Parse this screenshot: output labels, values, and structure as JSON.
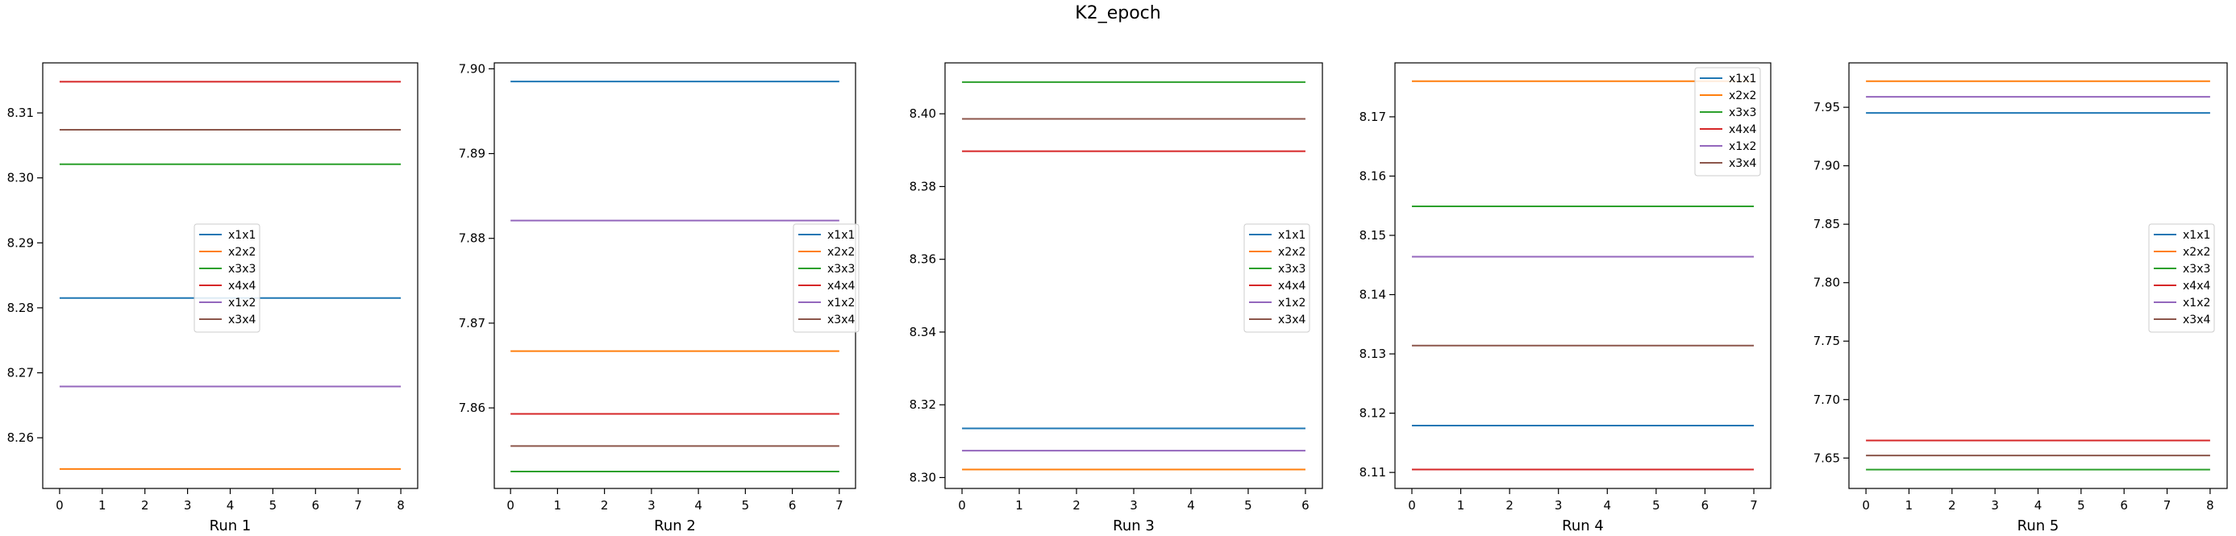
{
  "figure_title": "K2_epoch",
  "colors": {
    "x1x1": "#1f77b4",
    "x2x2": "#ff7f0e",
    "x3x3": "#2ca02c",
    "x4x4": "#d62728",
    "x1x2": "#9467bd",
    "x3x4": "#8c564b"
  },
  "chart_data": [
    {
      "type": "line",
      "xlabel": "Run 1",
      "ylabel": "",
      "grid": false,
      "legend_position": "center",
      "x": [
        0,
        1,
        2,
        3,
        4,
        5,
        6,
        7,
        8
      ],
      "xticks": [
        0,
        1,
        2,
        3,
        4,
        5,
        6,
        7,
        8
      ],
      "ylim": [
        8.2522,
        8.3177
      ],
      "yticks": [
        8.26,
        8.27,
        8.28,
        8.29,
        8.3,
        8.31
      ],
      "ytick_labels": [
        "8.26",
        "8.27",
        "8.28",
        "8.29",
        "8.30",
        "8.31"
      ],
      "series": [
        {
          "name": "x1x1",
          "value": 8.2815
        },
        {
          "name": "x2x2",
          "value": 8.2552
        },
        {
          "name": "x3x3",
          "value": 8.3021
        },
        {
          "name": "x4x4",
          "value": 8.3148
        },
        {
          "name": "x1x2",
          "value": 8.2679
        },
        {
          "name": "x3x4",
          "value": 8.3074
        }
      ]
    },
    {
      "type": "line",
      "xlabel": "Run 2",
      "ylabel": "",
      "grid": false,
      "legend_position": "right",
      "x": [
        0,
        1,
        2,
        3,
        4,
        5,
        6,
        7
      ],
      "xticks": [
        0,
        1,
        2,
        3,
        4,
        5,
        6,
        7
      ],
      "ylim": [
        7.8505,
        7.9007
      ],
      "yticks": [
        7.86,
        7.87,
        7.88,
        7.89,
        7.9
      ],
      "ytick_labels": [
        "7.86",
        "7.87",
        "7.88",
        "7.89",
        "7.90"
      ],
      "series": [
        {
          "name": "x1x1",
          "value": 7.8985
        },
        {
          "name": "x2x2",
          "value": 7.8667
        },
        {
          "name": "x3x3",
          "value": 7.8525
        },
        {
          "name": "x4x4",
          "value": 7.8593
        },
        {
          "name": "x1x2",
          "value": 7.8821
        },
        {
          "name": "x3x4",
          "value": 7.8555
        }
      ]
    },
    {
      "type": "line",
      "xlabel": "Run 3",
      "ylabel": "",
      "grid": false,
      "legend_position": "right",
      "x": [
        0,
        1,
        2,
        3,
        4,
        5,
        6
      ],
      "xticks": [
        0,
        1,
        2,
        3,
        4,
        5,
        6
      ],
      "ylim": [
        8.297,
        8.414
      ],
      "yticks": [
        8.3,
        8.32,
        8.34,
        8.36,
        8.38,
        8.4
      ],
      "ytick_labels": [
        "8.30",
        "8.32",
        "8.34",
        "8.36",
        "8.38",
        "8.40"
      ],
      "series": [
        {
          "name": "x1x1",
          "value": 8.3135
        },
        {
          "name": "x2x2",
          "value": 8.3022
        },
        {
          "name": "x3x3",
          "value": 8.4087
        },
        {
          "name": "x4x4",
          "value": 8.3897
        },
        {
          "name": "x1x2",
          "value": 8.3074
        },
        {
          "name": "x3x4",
          "value": 8.3986
        }
      ]
    },
    {
      "type": "line",
      "xlabel": "Run 4",
      "ylabel": "",
      "grid": false,
      "legend_position": "upper right",
      "x": [
        0,
        1,
        2,
        3,
        4,
        5,
        6,
        7
      ],
      "xticks": [
        0,
        1,
        2,
        3,
        4,
        5,
        6,
        7
      ],
      "ylim": [
        8.1073,
        8.1791
      ],
      "yticks": [
        8.11,
        8.12,
        8.13,
        8.14,
        8.15,
        8.16,
        8.17
      ],
      "ytick_labels": [
        "8.11",
        "8.12",
        "8.13",
        "8.14",
        "8.15",
        "8.16",
        "8.17"
      ],
      "series": [
        {
          "name": "x1x1",
          "value": 8.1179
        },
        {
          "name": "x2x2",
          "value": 8.176
        },
        {
          "name": "x3x3",
          "value": 8.1549
        },
        {
          "name": "x4x4",
          "value": 8.1105
        },
        {
          "name": "x1x2",
          "value": 8.1464
        },
        {
          "name": "x3x4",
          "value": 8.1314
        }
      ]
    },
    {
      "type": "line",
      "xlabel": "Run 5",
      "ylabel": "",
      "grid": false,
      "legend_position": "right",
      "x": [
        0,
        1,
        2,
        3,
        4,
        5,
        6,
        7,
        8
      ],
      "xticks": [
        0,
        1,
        2,
        3,
        4,
        5,
        6,
        7,
        8
      ],
      "ylim": [
        7.624,
        7.988
      ],
      "yticks": [
        7.65,
        7.7,
        7.75,
        7.8,
        7.85,
        7.9,
        7.95
      ],
      "ytick_labels": [
        "7.65",
        "7.70",
        "7.75",
        "7.80",
        "7.85",
        "7.90",
        "7.95"
      ],
      "series": [
        {
          "name": "x1x1",
          "value": 7.9452
        },
        {
          "name": "x2x2",
          "value": 7.9723
        },
        {
          "name": "x3x3",
          "value": 7.6401
        },
        {
          "name": "x4x4",
          "value": 7.665
        },
        {
          "name": "x1x2",
          "value": 7.959
        },
        {
          "name": "x3x4",
          "value": 7.6522
        }
      ]
    }
  ]
}
